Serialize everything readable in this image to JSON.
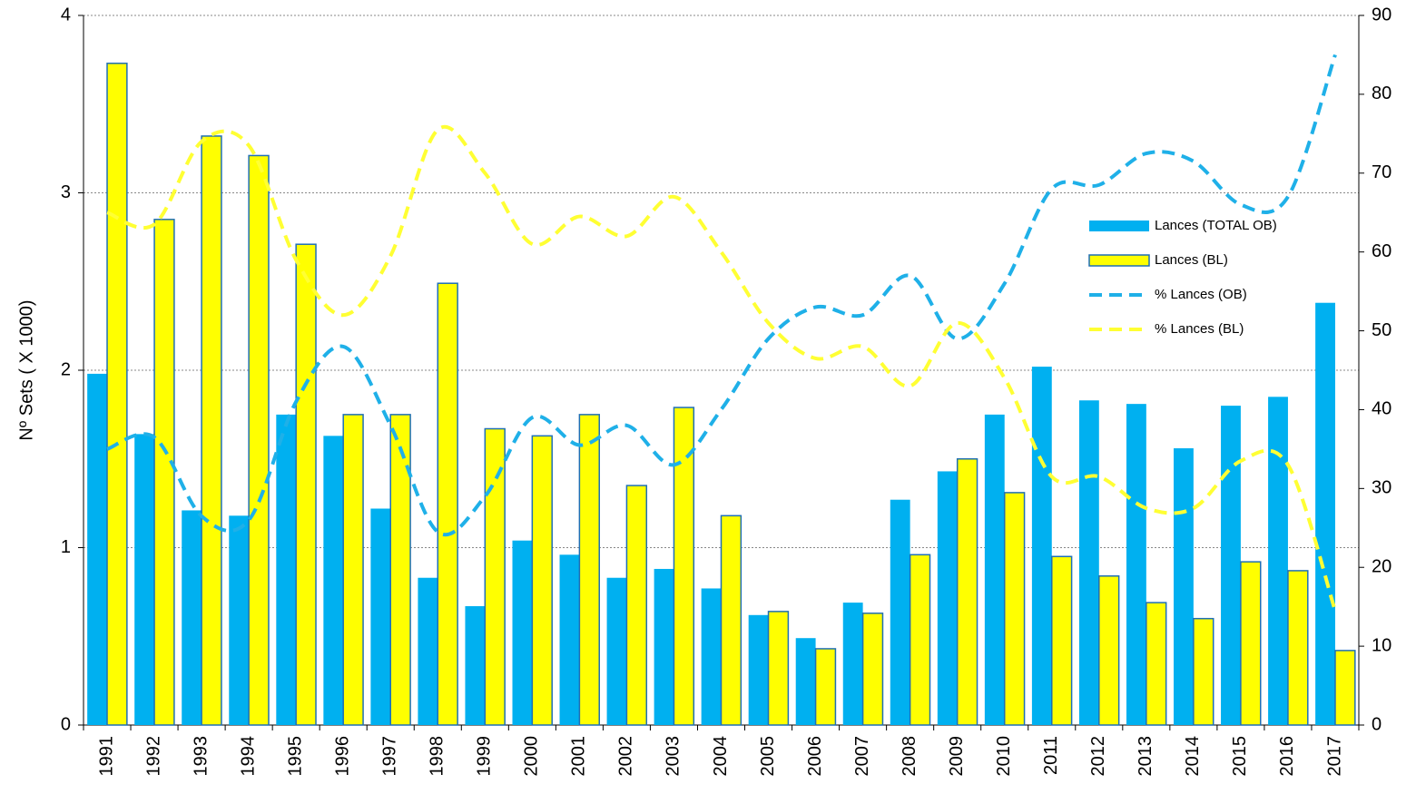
{
  "chart_data": {
    "type": "bar-line",
    "y_label": "Nº Sets ( X 1000)",
    "categories": [
      "1991",
      "1992",
      "1993",
      "1994",
      "1995",
      "1996",
      "1997",
      "1998",
      "1999",
      "2000",
      "2001",
      "2002",
      "2003",
      "2004",
      "2005",
      "2006",
      "2007",
      "2008",
      "2009",
      "2010",
      "2011",
      "2012",
      "2013",
      "2014",
      "2015",
      "2016",
      "2017"
    ],
    "series": [
      {
        "name": "Lances (TOTAL OB)",
        "kind": "bar",
        "color": "#00b0f0",
        "values": [
          1.98,
          1.64,
          1.21,
          1.18,
          1.75,
          1.63,
          1.22,
          0.83,
          0.67,
          1.04,
          0.96,
          0.83,
          0.88,
          0.77,
          0.62,
          0.49,
          0.69,
          1.27,
          1.43,
          1.75,
          2.02,
          1.83,
          1.81,
          1.56,
          1.8,
          1.85,
          2.38
        ]
      },
      {
        "name": "Lances (BL)",
        "kind": "bar",
        "color": "#ffff00",
        "outline": "#1f6fb5",
        "values": [
          3.73,
          2.85,
          3.32,
          3.21,
          2.71,
          1.75,
          1.75,
          2.49,
          1.67,
          1.63,
          1.75,
          1.35,
          1.79,
          1.18,
          0.64,
          0.43,
          0.63,
          0.96,
          1.5,
          1.31,
          0.95,
          0.84,
          0.69,
          0.6,
          0.92,
          0.87,
          0.42
        ]
      },
      {
        "name": "% Lances (OB)",
        "kind": "line",
        "axis": "y2",
        "dashed": true,
        "color": "#1fb0e8",
        "values": [
          35,
          36.5,
          26.5,
          26,
          41,
          48,
          38,
          24.5,
          29,
          39,
          35.5,
          38,
          33,
          40,
          49,
          53,
          52,
          57,
          49,
          56,
          68,
          68.5,
          72.5,
          71.5,
          66,
          67,
          85
        ]
      },
      {
        "name": "% Lances (BL)",
        "kind": "line",
        "axis": "y2",
        "dashed": true,
        "color": "#ffff33",
        "values": [
          65,
          63.5,
          74,
          73.5,
          59,
          52,
          59.5,
          75.5,
          70,
          61,
          64.5,
          62,
          67,
          60,
          51,
          46.5,
          48,
          43,
          51,
          44,
          31.5,
          31.5,
          27.5,
          27.5,
          33.5,
          33,
          14.5
        ]
      }
    ],
    "ylim": [
      0,
      4
    ],
    "yticks": [
      0,
      1,
      2,
      3,
      4
    ],
    "y2lim": [
      0,
      90
    ],
    "y2ticks": [
      0,
      10,
      20,
      30,
      40,
      50,
      60,
      70,
      80,
      90
    ],
    "grid": true,
    "legend": "right"
  }
}
